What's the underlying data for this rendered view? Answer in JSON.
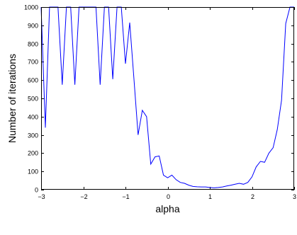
{
  "chart_data": {
    "type": "line",
    "title": "",
    "xlabel": "alpha",
    "ylabel": "Number of iterations",
    "xlim": [
      -3,
      3
    ],
    "ylim": [
      0,
      1000
    ],
    "xticks": [
      -3,
      -2,
      -1,
      0,
      1,
      2,
      3
    ],
    "yticks": [
      0,
      100,
      200,
      300,
      400,
      500,
      600,
      700,
      800,
      900,
      1000
    ],
    "grid": false,
    "legend": "none",
    "colors": {
      "line": "#0000ff",
      "axes": "#000000"
    },
    "series": [
      {
        "x": [
          -3.0,
          -2.9,
          -2.8,
          -2.7,
          -2.6,
          -2.5,
          -2.4,
          -2.3,
          -2.2,
          -2.1,
          -2.0,
          -1.9,
          -1.8,
          -1.7,
          -1.6,
          -1.5,
          -1.4,
          -1.3,
          -1.2,
          -1.1,
          -1.0,
          -0.9,
          -0.8,
          -0.7,
          -0.6,
          -0.5,
          -0.4,
          -0.3,
          -0.2,
          -0.1,
          0.0,
          0.1,
          0.2,
          0.3,
          0.4,
          0.5,
          0.6,
          0.7,
          0.8,
          0.9,
          1.0,
          1.1,
          1.2,
          1.3,
          1.4,
          1.5,
          1.6,
          1.7,
          1.8,
          1.9,
          2.0,
          2.1,
          2.2,
          2.3,
          2.4,
          2.5,
          2.6,
          2.7,
          2.8,
          2.9,
          3.0
        ],
        "y": [
          1000,
          340,
          1000,
          1000,
          1000,
          575,
          1000,
          1000,
          575,
          1000,
          1000,
          1000,
          1000,
          1000,
          575,
          1000,
          1000,
          605,
          1000,
          1000,
          690,
          915,
          610,
          300,
          435,
          400,
          140,
          180,
          185,
          80,
          65,
          80,
          55,
          40,
          35,
          25,
          18,
          16,
          15,
          15,
          12,
          10,
          12,
          15,
          20,
          25,
          30,
          35,
          30,
          40,
          70,
          125,
          155,
          150,
          200,
          230,
          330,
          490,
          910,
          1000,
          1000
        ]
      }
    ]
  }
}
